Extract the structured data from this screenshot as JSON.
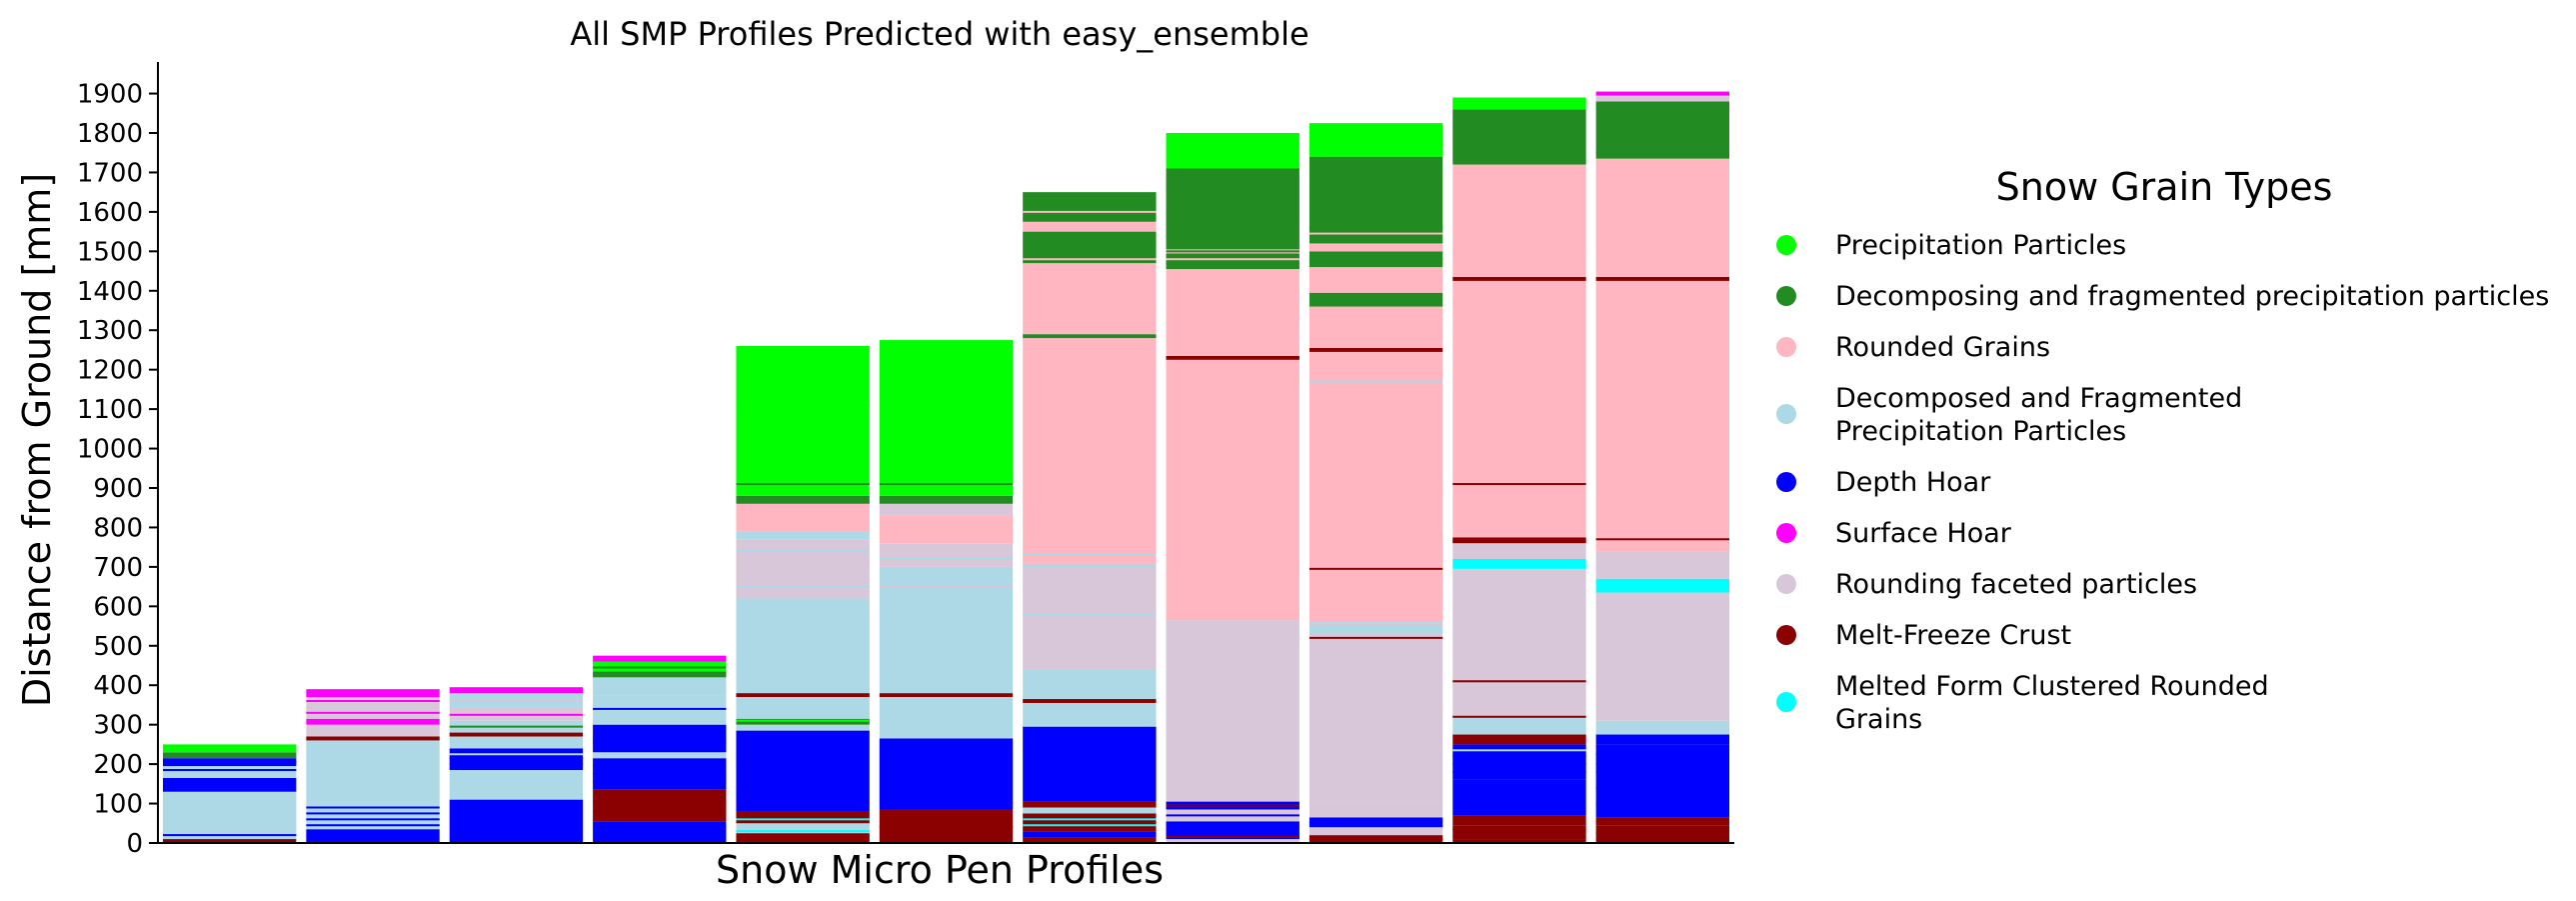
{
  "chart_data": {
    "type": "bar",
    "stacked": true,
    "title": "All SMP Profiles Predicted with easy_ensemble",
    "xlabel": "Snow Micro Pen Profiles",
    "ylabel": "Distance from Ground [mm]",
    "ylim": [
      0,
      1980
    ],
    "yticks": [
      0,
      100,
      200,
      300,
      400,
      500,
      600,
      700,
      800,
      900,
      1000,
      1100,
      1200,
      1300,
      1400,
      1500,
      1600,
      1700,
      1800,
      1900
    ],
    "x_tick_labels_shown": false,
    "legend": {
      "title": "Snow Grain Types",
      "placement": "right"
    },
    "classes": [
      {
        "key": "pp",
        "name": "Precipitation Particles",
        "color": "#00ff00"
      },
      {
        "key": "ppgp",
        "name": "Decomposing and fragmented precipitation particles",
        "color": "#228b22"
      },
      {
        "key": "rg",
        "name": "Rounded Grains",
        "color": "#ffb6c1"
      },
      {
        "key": "df",
        "name": "Decomposed and Fragmented Precipitation Particles",
        "color": "#add8e6"
      },
      {
        "key": "dh",
        "name": "Depth Hoar",
        "color": "#0000ff"
      },
      {
        "key": "sh",
        "name": "Surface Hoar",
        "color": "#ff00ff"
      },
      {
        "key": "fcxr",
        "name": "Rounding faceted particles",
        "color": "#d8c7d8"
      },
      {
        "key": "mfcr",
        "name": "Melt-Freeze Crust",
        "color": "#8b0000"
      },
      {
        "key": "mfcl",
        "name": "Melted Form Clustered Rounded Grains",
        "color": "#00ffff"
      }
    ],
    "profiles": [
      {
        "segments": [
          [
            "mfcr",
            0,
            10
          ],
          [
            "df",
            10,
            130
          ],
          [
            "dh",
            130,
            165
          ],
          [
            "df",
            165,
            195
          ],
          [
            "dh",
            195,
            215
          ],
          [
            "ppgp",
            215,
            230
          ],
          [
            "pp",
            230,
            250
          ]
        ],
        "lines": [
          [
            "df",
            40
          ],
          [
            "dh",
            20
          ],
          [
            "dh",
            185
          ],
          [
            "dh",
            205
          ],
          [
            "ppgp",
            220
          ]
        ]
      },
      {
        "segments": [
          [
            "dh",
            0,
            35
          ],
          [
            "df",
            35,
            100
          ],
          [
            "df",
            100,
            260
          ],
          [
            "mfcr",
            260,
            270
          ],
          [
            "fcxr",
            270,
            300
          ],
          [
            "sh",
            300,
            315
          ],
          [
            "fcxr",
            315,
            355
          ],
          [
            "fcxr",
            355,
            370
          ],
          [
            "sh",
            370,
            390
          ]
        ],
        "lines": [
          [
            "dh",
            45
          ],
          [
            "dh",
            60
          ],
          [
            "dh",
            75
          ],
          [
            "dh",
            90
          ],
          [
            "fcxr",
            285
          ],
          [
            "sh",
            330
          ],
          [
            "fcxr",
            345
          ],
          [
            "sh",
            360
          ]
        ]
      },
      {
        "segments": [
          [
            "dh",
            0,
            110
          ],
          [
            "df",
            110,
            185
          ],
          [
            "dh",
            185,
            240
          ],
          [
            "df",
            240,
            270
          ],
          [
            "mfcr",
            270,
            280
          ],
          [
            "df",
            280,
            310
          ],
          [
            "fcxr",
            310,
            345
          ],
          [
            "df",
            345,
            380
          ],
          [
            "sh",
            380,
            395
          ]
        ],
        "lines": [
          [
            "dh",
            200
          ],
          [
            "dh",
            215
          ],
          [
            "df",
            225
          ],
          [
            "ppgp",
            295
          ],
          [
            "sh",
            325
          ],
          [
            "fcxr",
            360
          ]
        ]
      },
      {
        "segments": [
          [
            "dh",
            0,
            55
          ],
          [
            "mfcr",
            55,
            135
          ],
          [
            "dh",
            135,
            215
          ],
          [
            "df",
            215,
            230
          ],
          [
            "dh",
            230,
            300
          ],
          [
            "df",
            300,
            375
          ],
          [
            "df",
            375,
            420
          ],
          [
            "ppgp",
            420,
            435
          ],
          [
            "pp",
            435,
            460
          ],
          [
            "sh",
            460,
            475
          ]
        ],
        "lines": [
          [
            "mfcr",
            80
          ],
          [
            "mfcr",
            105
          ],
          [
            "dh",
            155
          ],
          [
            "dh",
            175
          ],
          [
            "dh",
            195
          ],
          [
            "dh",
            255
          ],
          [
            "df",
            310
          ],
          [
            "dh",
            340
          ],
          [
            "df",
            395
          ],
          [
            "ppgp",
            445
          ]
        ]
      },
      {
        "segments": [
          [
            "mfcr",
            0,
            25
          ],
          [
            "df",
            25,
            50
          ],
          [
            "mfcr",
            50,
            80
          ],
          [
            "dh",
            80,
            285
          ],
          [
            "df",
            285,
            300
          ],
          [
            "ppgp",
            300,
            315
          ],
          [
            "df",
            315,
            370
          ],
          [
            "mfcr",
            370,
            380
          ],
          [
            "df",
            380,
            620
          ],
          [
            "fcxr",
            620,
            770
          ],
          [
            "df",
            770,
            790
          ],
          [
            "rg",
            790,
            860
          ],
          [
            "ppgp",
            860,
            880
          ],
          [
            "pp",
            880,
            1260
          ]
        ],
        "lines": [
          [
            "mfcl",
            30
          ],
          [
            "mfcl",
            60
          ],
          [
            "pp",
            310
          ],
          [
            "df",
            650
          ],
          [
            "fcxr",
            700
          ],
          [
            "df",
            740
          ],
          [
            "rg",
            810
          ],
          [
            "ppgp",
            910
          ],
          [
            "pp",
            1110
          ]
        ]
      },
      {
        "segments": [
          [
            "mfcr",
            0,
            85
          ],
          [
            "dh",
            85,
            265
          ],
          [
            "df",
            265,
            370
          ],
          [
            "mfcr",
            370,
            380
          ],
          [
            "df",
            380,
            700
          ],
          [
            "fcxr",
            700,
            760
          ],
          [
            "rg",
            760,
            830
          ],
          [
            "fcxr",
            830,
            860
          ],
          [
            "ppgp",
            860,
            880
          ],
          [
            "pp",
            880,
            1275
          ]
        ],
        "lines": [
          [
            "mfcr",
            40
          ],
          [
            "df",
            600
          ],
          [
            "fcxr",
            650
          ],
          [
            "df",
            720
          ],
          [
            "rg",
            800
          ],
          [
            "ppgp",
            910
          ]
        ]
      },
      {
        "segments": [
          [
            "mfcr",
            0,
            15
          ],
          [
            "dh",
            15,
            30
          ],
          [
            "mfcr",
            30,
            75
          ],
          [
            "df",
            75,
            90
          ],
          [
            "mfcr",
            90,
            105
          ],
          [
            "dh",
            105,
            295
          ],
          [
            "df",
            295,
            355
          ],
          [
            "mfcr",
            355,
            365
          ],
          [
            "df",
            365,
            440
          ],
          [
            "fcxr",
            440,
            710
          ],
          [
            "rg",
            710,
            1280
          ],
          [
            "ppgp",
            1280,
            1290
          ],
          [
            "rg",
            1290,
            1470
          ],
          [
            "ppgp",
            1470,
            1550
          ],
          [
            "rg",
            1550,
            1575
          ],
          [
            "ppgp",
            1575,
            1650
          ]
        ],
        "lines": [
          [
            "mfcl",
            45
          ],
          [
            "mfcl",
            60
          ],
          [
            "df",
            370
          ],
          [
            "df",
            580
          ],
          [
            "fcxr",
            650
          ],
          [
            "df",
            700
          ],
          [
            "df",
            730
          ],
          [
            "rg",
            1480
          ],
          [
            "rg",
            1600
          ]
        ]
      },
      {
        "segments": [
          [
            "fcxr",
            0,
            10
          ],
          [
            "dh",
            10,
            55
          ],
          [
            "fcxr",
            55,
            85
          ],
          [
            "dh",
            85,
            105
          ],
          [
            "fcxr",
            105,
            565
          ],
          [
            "rg",
            565,
            1225
          ],
          [
            "mfcr",
            1225,
            1235
          ],
          [
            "rg",
            1235,
            1455
          ],
          [
            "ppgp",
            1455,
            1495
          ],
          [
            "rg",
            1495,
            1505
          ],
          [
            "ppgp",
            1505,
            1710
          ],
          [
            "pp",
            1710,
            1800
          ]
        ],
        "lines": [
          [
            "mfcr",
            15
          ],
          [
            "dh",
            70
          ],
          [
            "mfcr",
            95
          ],
          [
            "fcxr",
            515
          ],
          [
            "rg",
            1350
          ],
          [
            "ppgp",
            1470
          ],
          [
            "rg",
            1480
          ],
          [
            "ppgp",
            1500
          ]
        ]
      },
      {
        "segments": [
          [
            "mfcr",
            0,
            20
          ],
          [
            "fcxr",
            20,
            40
          ],
          [
            "dh",
            40,
            65
          ],
          [
            "fcxr",
            65,
            105
          ],
          [
            "fcxr",
            105,
            530
          ],
          [
            "df",
            530,
            560
          ],
          [
            "rg",
            560,
            1245
          ],
          [
            "mfcr",
            1245,
            1255
          ],
          [
            "rg",
            1255,
            1360
          ],
          [
            "ppgp",
            1360,
            1395
          ],
          [
            "rg",
            1395,
            1460
          ],
          [
            "ppgp",
            1460,
            1500
          ],
          [
            "rg",
            1500,
            1520
          ],
          [
            "ppgp",
            1520,
            1740
          ],
          [
            "pp",
            1740,
            1825
          ]
        ],
        "lines": [
          [
            "mfcr",
            10
          ],
          [
            "mfcr",
            520
          ],
          [
            "fcxr",
            555
          ],
          [
            "mfcr",
            695
          ],
          [
            "df",
            1170
          ],
          [
            "rg",
            1430
          ],
          [
            "ppgp",
            1480
          ],
          [
            "rg",
            1545
          ],
          [
            "ppgp",
            1560
          ]
        ]
      },
      {
        "segments": [
          [
            "mfcr",
            0,
            10
          ],
          [
            "mfcr",
            10,
            45
          ],
          [
            "mfcr",
            45,
            70
          ],
          [
            "dh",
            70,
            160
          ],
          [
            "dh",
            160,
            250
          ],
          [
            "mfcr",
            250,
            275
          ],
          [
            "df",
            275,
            320
          ],
          [
            "fcxr",
            320,
            695
          ],
          [
            "mfcl",
            695,
            720
          ],
          [
            "fcxr",
            720,
            760
          ],
          [
            "mfcr",
            760,
            775
          ],
          [
            "rg",
            775,
            1425
          ],
          [
            "mfcr",
            1425,
            1435
          ],
          [
            "rg",
            1435,
            1720
          ],
          [
            "ppgp",
            1720,
            1860
          ],
          [
            "pp",
            1860,
            1890
          ]
        ],
        "lines": [
          [
            "mfcr",
            35
          ],
          [
            "dh",
            180
          ],
          [
            "dh",
            200
          ],
          [
            "dh",
            220
          ],
          [
            "df",
            235
          ],
          [
            "mfcr",
            320
          ],
          [
            "mfcr",
            410
          ],
          [
            "mfcr",
            765
          ],
          [
            "mfcr",
            910
          ],
          [
            "rg",
            1500
          ],
          [
            "pp",
            1880
          ]
        ]
      },
      {
        "segments": [
          [
            "mfcr",
            0,
            45
          ],
          [
            "mfcr",
            45,
            65
          ],
          [
            "dh",
            65,
            250
          ],
          [
            "dh",
            250,
            275
          ],
          [
            "df",
            275,
            310
          ],
          [
            "fcxr",
            310,
            635
          ],
          [
            "mfcl",
            635,
            670
          ],
          [
            "fcxr",
            670,
            740
          ],
          [
            "rg",
            740,
            1425
          ],
          [
            "mfcr",
            1425,
            1435
          ],
          [
            "rg",
            1435,
            1710
          ],
          [
            "rg",
            1710,
            1735
          ],
          [
            "ppgp",
            1735,
            1880
          ],
          [
            "fcxr",
            1880,
            1895
          ],
          [
            "sh",
            1895,
            1905
          ]
        ],
        "lines": [
          [
            "mfcr",
            25
          ],
          [
            "mfcr",
            55
          ],
          [
            "dh",
            100
          ],
          [
            "dh",
            140
          ],
          [
            "dh",
            180
          ],
          [
            "dh",
            200
          ],
          [
            "dh",
            225
          ],
          [
            "mfcl",
            660
          ],
          [
            "mfcr",
            770
          ],
          [
            "rg",
            1500
          ],
          [
            "ppgp",
            1750
          ],
          [
            "ppgp",
            1870
          ]
        ]
      }
    ]
  }
}
